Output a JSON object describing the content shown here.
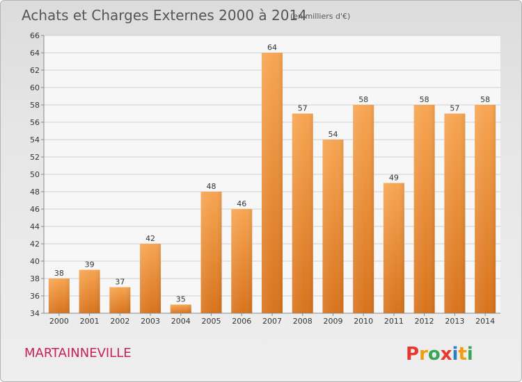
{
  "chart_data": {
    "type": "bar",
    "title": "Achats et Charges Externes 2000 à 2014",
    "subtitle": "(en milliers d'€)",
    "categories": [
      "2000",
      "2001",
      "2002",
      "2003",
      "2004",
      "2005",
      "2006",
      "2007",
      "2008",
      "2009",
      "2010",
      "2011",
      "2012",
      "2013",
      "2014"
    ],
    "values": [
      38,
      39,
      37,
      42,
      35,
      48,
      46,
      64,
      57,
      54,
      58,
      49,
      58,
      57,
      58
    ],
    "ylim": [
      34,
      66
    ],
    "yticks": [
      34,
      36,
      38,
      40,
      42,
      44,
      46,
      48,
      50,
      52,
      54,
      56,
      58,
      60,
      62,
      64,
      66
    ],
    "grid": true,
    "bar_color": "#f0953a"
  },
  "footer": {
    "commune": "MARTAINNEVILLE",
    "logo_text": "Proxiti",
    "logo_colors": [
      "#e8382d",
      "#f39c12",
      "#3aa655",
      "#e8382d",
      "#2d7fc1",
      "#f39c12",
      "#3aa655"
    ]
  }
}
